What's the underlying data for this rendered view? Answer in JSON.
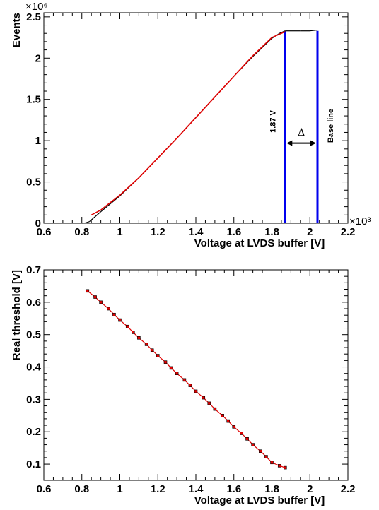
{
  "chart_data": [
    {
      "type": "line",
      "xlabel": "Voltage at LVDS buffer [V]",
      "ylabel": "Events",
      "x_multiplier": "×10³",
      "y_multiplier": "×10⁶",
      "xlim": [
        0.6,
        2.2
      ],
      "ylim": [
        0,
        2.55
      ],
      "x_ticks": [
        "0.6",
        "0.8",
        "1",
        "1.2",
        "1.4",
        "1.6",
        "1.8",
        "2",
        "2.2"
      ],
      "y_ticks": [
        "0",
        "0.5",
        "1",
        "1.5",
        "2",
        "2.5"
      ],
      "grid": false,
      "series": [
        {
          "color": "#000000",
          "x": [
            0.8,
            0.82,
            0.84,
            0.86,
            0.9,
            1.0,
            1.1,
            1.2,
            1.3,
            1.4,
            1.5,
            1.6,
            1.7,
            1.8,
            1.84,
            1.87,
            1.9,
            1.95,
            2.0,
            2.04
          ],
          "values": [
            0,
            0.005,
            0.02,
            0.06,
            0.14,
            0.33,
            0.55,
            0.79,
            1.03,
            1.28,
            1.53,
            1.78,
            2.02,
            2.24,
            2.3,
            2.33,
            2.33,
            2.33,
            2.33,
            2.34
          ]
        },
        {
          "color": "#e00000",
          "x": [
            0.85,
            0.9,
            1.0,
            1.1,
            1.2,
            1.3,
            1.4,
            1.5,
            1.6,
            1.7,
            1.8,
            1.87
          ],
          "values": [
            0.1,
            0.16,
            0.34,
            0.55,
            0.79,
            1.03,
            1.28,
            1.53,
            1.78,
            2.03,
            2.25,
            2.32
          ]
        }
      ],
      "vlines": [
        {
          "x": 1.87,
          "color": "#0000ee"
        },
        {
          "x": 2.04,
          "color": "#0000ee"
        }
      ],
      "annotations": {
        "left_line_label": "1.87 V",
        "right_line_label": "Base line",
        "delta_label": "Δ"
      }
    },
    {
      "type": "scatter",
      "xlabel": "Voltage at LVDS buffer [V]",
      "ylabel": "Real threshold [V]",
      "xlim": [
        0.6,
        2.2
      ],
      "ylim": [
        0.05,
        0.7
      ],
      "x_ticks": [
        "0.6",
        "0.8",
        "1",
        "1.2",
        "1.4",
        "1.6",
        "1.8",
        "2",
        "2.2"
      ],
      "y_ticks": [
        "0.1",
        "0.2",
        "0.3",
        "0.4",
        "0.5",
        "0.6",
        "0.7"
      ],
      "grid": false,
      "series": [
        {
          "color": "#e00000",
          "x": [
            0.83,
            0.87,
            0.9,
            0.94,
            0.97,
            1.0,
            1.04,
            1.07,
            1.1,
            1.14,
            1.17,
            1.2,
            1.24,
            1.27,
            1.3,
            1.34,
            1.37,
            1.4,
            1.44,
            1.47,
            1.5,
            1.54,
            1.57,
            1.6,
            1.64,
            1.67,
            1.7,
            1.74,
            1.77,
            1.8,
            1.84,
            1.87
          ],
          "values": [
            0.635,
            0.616,
            0.6,
            0.58,
            0.562,
            0.545,
            0.525,
            0.507,
            0.49,
            0.47,
            0.452,
            0.435,
            0.415,
            0.397,
            0.38,
            0.36,
            0.343,
            0.325,
            0.305,
            0.288,
            0.27,
            0.25,
            0.233,
            0.215,
            0.195,
            0.178,
            0.16,
            0.14,
            0.123,
            0.105,
            0.095,
            0.089
          ]
        }
      ]
    }
  ]
}
